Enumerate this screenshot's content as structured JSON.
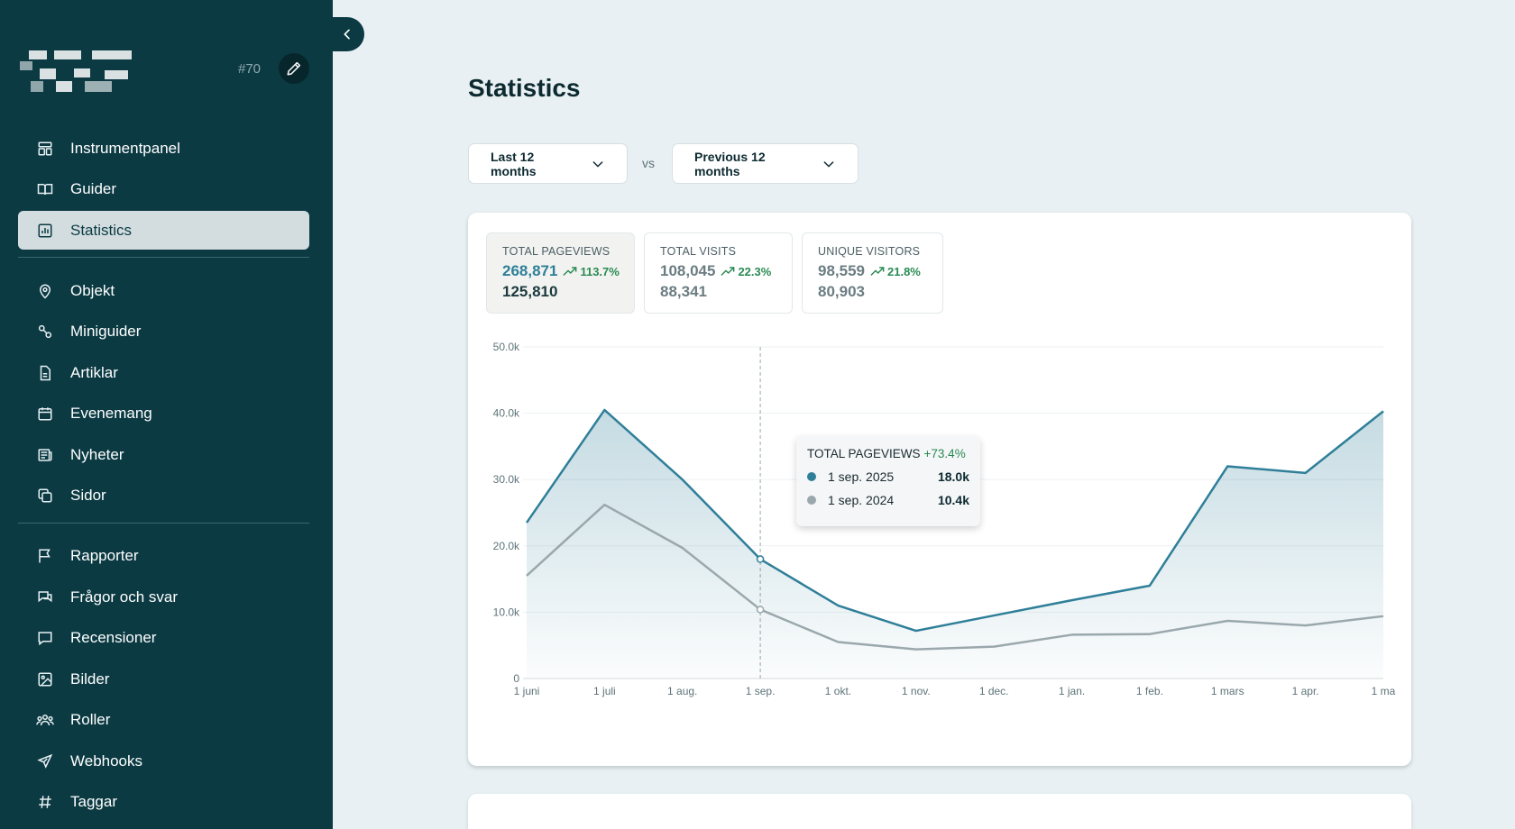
{
  "sidebar": {
    "project_id": "#70",
    "items_group1": [
      {
        "label": "Instrumentpanel",
        "icon": "dashboard-icon"
      },
      {
        "label": "Guider",
        "icon": "book-icon"
      },
      {
        "label": "Statistics",
        "icon": "chart-icon",
        "active": true
      }
    ],
    "items_group2": [
      {
        "label": "Objekt",
        "icon": "location-pin-icon"
      },
      {
        "label": "Miniguider",
        "icon": "route-icon"
      },
      {
        "label": "Artiklar",
        "icon": "document-icon"
      },
      {
        "label": "Evenemang",
        "icon": "calendar-icon"
      },
      {
        "label": "Nyheter",
        "icon": "newspaper-icon"
      },
      {
        "label": "Sidor",
        "icon": "pages-icon"
      }
    ],
    "items_group3": [
      {
        "label": "Rapporter",
        "icon": "flag-icon"
      },
      {
        "label": "Frågor och svar",
        "icon": "chat-icon"
      },
      {
        "label": "Recensioner",
        "icon": "review-icon"
      },
      {
        "label": "Bilder",
        "icon": "image-icon"
      },
      {
        "label": "Roller",
        "icon": "users-icon"
      },
      {
        "label": "Webhooks",
        "icon": "send-icon"
      },
      {
        "label": "Taggar",
        "icon": "hash-icon"
      }
    ]
  },
  "main": {
    "title": "Statistics",
    "period_select": "Last 12 months",
    "vs_label": "vs",
    "compare_select": "Previous 12 months",
    "metrics": [
      {
        "label": "TOTAL PAGEVIEWS",
        "value": "268,871",
        "delta": "113.7%",
        "previous": "125,810"
      },
      {
        "label": "TOTAL VISITS",
        "value": "108,045",
        "delta": "22.3%",
        "previous": "88,341"
      },
      {
        "label": "UNIQUE VISITORS",
        "value": "98,559",
        "delta": "21.8%",
        "previous": "80,903"
      }
    ],
    "tooltip": {
      "title": "TOTAL PAGEVIEWS",
      "delta": "+73.4%",
      "current_date": "1 sep. 2025",
      "current_value": "18.0k",
      "previous_date": "1 sep. 2024",
      "previous_value": "10.4k"
    }
  },
  "colors": {
    "sidebar_bg": "#0b3a43",
    "current_series": "#2f7f99",
    "previous_series": "#9aa8ad",
    "positive": "#2a8a54"
  },
  "chart_data": {
    "type": "area",
    "x": [
      "1 juni",
      "1 juli",
      "1 aug.",
      "1 sep.",
      "1 okt.",
      "1 nov.",
      "1 dec.",
      "1 jan.",
      "1 feb.",
      "1 mars",
      "1 apr.",
      "1 ma"
    ],
    "y_ticks": [
      "0",
      "10.0k",
      "20.0k",
      "30.0k",
      "40.0k",
      "50.0k"
    ],
    "ylim": [
      0,
      50000
    ],
    "series": [
      {
        "values": [
          23500,
          40500,
          30000,
          18000,
          11000,
          7200,
          9500,
          11800,
          14000,
          32000,
          31000,
          40300
        ]
      },
      {
        "values": [
          15500,
          26200,
          19700,
          10400,
          5500,
          4400,
          4800,
          6600,
          6700,
          8700,
          8000,
          9400
        ]
      }
    ],
    "highlight_index": 3,
    "grid": true
  }
}
